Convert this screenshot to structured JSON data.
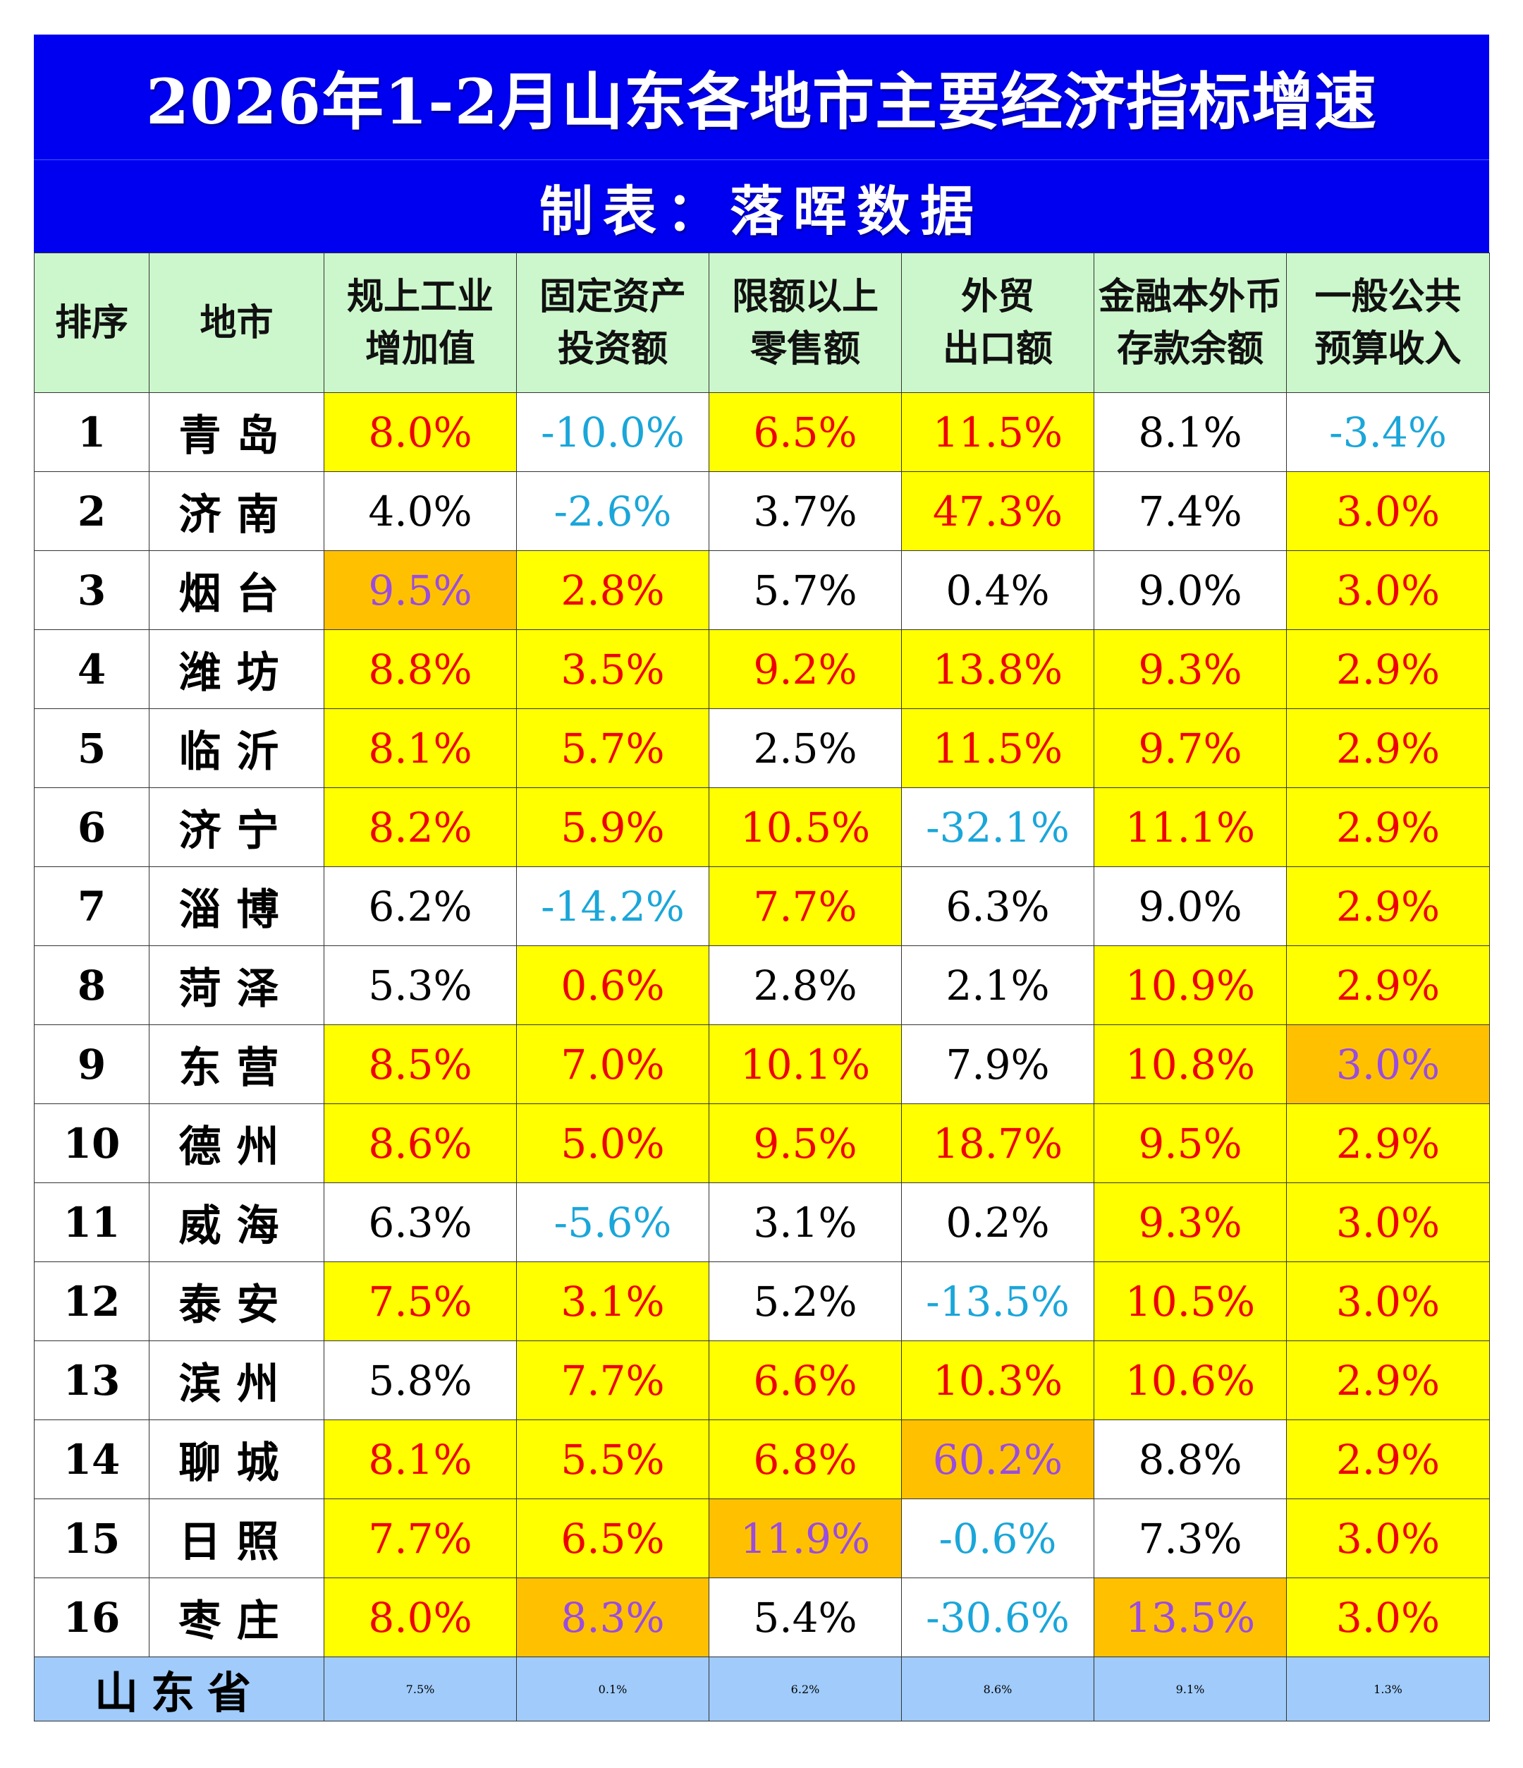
{
  "title": "2026年1-2月山东各地市主要经济指标增速",
  "subtitle": "制表：落晖数据",
  "colors": {
    "title_bg": "#0000f0",
    "header_bg": "#ccf7cc",
    "highlight_yellow": "#ffff00",
    "highlight_orange": "#ffc000",
    "total_row_bg": "#a0cbfa",
    "text_red": "#ee0000",
    "text_blue_negative": "#1aa6d9",
    "text_purple_top": "#9a4be0"
  },
  "headers": {
    "rank": "排序",
    "city": "地市",
    "col1": [
      "规上工业",
      "增加值"
    ],
    "col2": [
      "固定资产",
      "投资额"
    ],
    "col3": [
      "限额以上",
      "零售额"
    ],
    "col4": [
      "外贸",
      "出口额"
    ],
    "col5": [
      "金融本外币",
      "存款余额"
    ],
    "col6": [
      "一般公共",
      "预算收入"
    ]
  },
  "rows": [
    {
      "rank": "1",
      "city": "青岛",
      "v": [
        "8.0%",
        "-10.0%",
        "6.5%",
        "11.5%",
        "8.1%",
        "-3.4%"
      ],
      "bg": [
        "yellow",
        "white",
        "yellow",
        "yellow",
        "white",
        "white"
      ],
      "fg": [
        "red",
        "blue",
        "red",
        "red",
        "black",
        "blue"
      ]
    },
    {
      "rank": "2",
      "city": "济南",
      "v": [
        "4.0%",
        "-2.6%",
        "3.7%",
        "47.3%",
        "7.4%",
        "3.0%"
      ],
      "bg": [
        "white",
        "white",
        "white",
        "yellow",
        "white",
        "yellow"
      ],
      "fg": [
        "black",
        "blue",
        "black",
        "red",
        "black",
        "red"
      ]
    },
    {
      "rank": "3",
      "city": "烟台",
      "v": [
        "9.5%",
        "2.8%",
        "5.7%",
        "0.4%",
        "9.0%",
        "3.0%"
      ],
      "bg": [
        "orange",
        "yellow",
        "white",
        "white",
        "white",
        "yellow"
      ],
      "fg": [
        "purple",
        "red",
        "black",
        "black",
        "black",
        "red"
      ]
    },
    {
      "rank": "4",
      "city": "潍坊",
      "v": [
        "8.8%",
        "3.5%",
        "9.2%",
        "13.8%",
        "9.3%",
        "2.9%"
      ],
      "bg": [
        "yellow",
        "yellow",
        "yellow",
        "yellow",
        "yellow",
        "yellow"
      ],
      "fg": [
        "red",
        "red",
        "red",
        "red",
        "red",
        "red"
      ]
    },
    {
      "rank": "5",
      "city": "临沂",
      "v": [
        "8.1%",
        "5.7%",
        "2.5%",
        "11.5%",
        "9.7%",
        "2.9%"
      ],
      "bg": [
        "yellow",
        "yellow",
        "white",
        "yellow",
        "yellow",
        "yellow"
      ],
      "fg": [
        "red",
        "red",
        "black",
        "red",
        "red",
        "red"
      ]
    },
    {
      "rank": "6",
      "city": "济宁",
      "v": [
        "8.2%",
        "5.9%",
        "10.5%",
        "-32.1%",
        "11.1%",
        "2.9%"
      ],
      "bg": [
        "yellow",
        "yellow",
        "yellow",
        "white",
        "yellow",
        "yellow"
      ],
      "fg": [
        "red",
        "red",
        "red",
        "blue",
        "red",
        "red"
      ]
    },
    {
      "rank": "7",
      "city": "淄博",
      "v": [
        "6.2%",
        "-14.2%",
        "7.7%",
        "6.3%",
        "9.0%",
        "2.9%"
      ],
      "bg": [
        "white",
        "white",
        "yellow",
        "white",
        "white",
        "yellow"
      ],
      "fg": [
        "black",
        "blue",
        "red",
        "black",
        "black",
        "red"
      ]
    },
    {
      "rank": "8",
      "city": "菏泽",
      "v": [
        "5.3%",
        "0.6%",
        "2.8%",
        "2.1%",
        "10.9%",
        "2.9%"
      ],
      "bg": [
        "white",
        "yellow",
        "white",
        "white",
        "yellow",
        "yellow"
      ],
      "fg": [
        "black",
        "red",
        "black",
        "black",
        "red",
        "red"
      ]
    },
    {
      "rank": "9",
      "city": "东营",
      "v": [
        "8.5%",
        "7.0%",
        "10.1%",
        "7.9%",
        "10.8%",
        "3.0%"
      ],
      "bg": [
        "yellow",
        "yellow",
        "yellow",
        "white",
        "yellow",
        "orange"
      ],
      "fg": [
        "red",
        "red",
        "red",
        "black",
        "red",
        "purple"
      ]
    },
    {
      "rank": "10",
      "city": "德州",
      "v": [
        "8.6%",
        "5.0%",
        "9.5%",
        "18.7%",
        "9.5%",
        "2.9%"
      ],
      "bg": [
        "yellow",
        "yellow",
        "yellow",
        "yellow",
        "yellow",
        "yellow"
      ],
      "fg": [
        "red",
        "red",
        "red",
        "red",
        "red",
        "red"
      ]
    },
    {
      "rank": "11",
      "city": "威海",
      "v": [
        "6.3%",
        "-5.6%",
        "3.1%",
        "0.2%",
        "9.3%",
        "3.0%"
      ],
      "bg": [
        "white",
        "white",
        "white",
        "white",
        "yellow",
        "yellow"
      ],
      "fg": [
        "black",
        "blue",
        "black",
        "black",
        "red",
        "red"
      ]
    },
    {
      "rank": "12",
      "city": "泰安",
      "v": [
        "7.5%",
        "3.1%",
        "5.2%",
        "-13.5%",
        "10.5%",
        "3.0%"
      ],
      "bg": [
        "yellow",
        "yellow",
        "white",
        "white",
        "yellow",
        "yellow"
      ],
      "fg": [
        "red",
        "red",
        "black",
        "blue",
        "red",
        "red"
      ]
    },
    {
      "rank": "13",
      "city": "滨州",
      "v": [
        "5.8%",
        "7.7%",
        "6.6%",
        "10.3%",
        "10.6%",
        "2.9%"
      ],
      "bg": [
        "white",
        "yellow",
        "yellow",
        "yellow",
        "yellow",
        "yellow"
      ],
      "fg": [
        "black",
        "red",
        "red",
        "red",
        "red",
        "red"
      ]
    },
    {
      "rank": "14",
      "city": "聊城",
      "v": [
        "8.1%",
        "5.5%",
        "6.8%",
        "60.2%",
        "8.8%",
        "2.9%"
      ],
      "bg": [
        "yellow",
        "yellow",
        "yellow",
        "orange",
        "white",
        "yellow"
      ],
      "fg": [
        "red",
        "red",
        "red",
        "purple",
        "black",
        "red"
      ]
    },
    {
      "rank": "15",
      "city": "日照",
      "v": [
        "7.7%",
        "6.5%",
        "11.9%",
        "-0.6%",
        "7.3%",
        "3.0%"
      ],
      "bg": [
        "yellow",
        "yellow",
        "orange",
        "white",
        "white",
        "yellow"
      ],
      "fg": [
        "red",
        "red",
        "purple",
        "blue",
        "black",
        "red"
      ]
    },
    {
      "rank": "16",
      "city": "枣庄",
      "v": [
        "8.0%",
        "8.3%",
        "5.4%",
        "-30.6%",
        "13.5%",
        "3.0%"
      ],
      "bg": [
        "yellow",
        "orange",
        "white",
        "white",
        "orange",
        "yellow"
      ],
      "fg": [
        "red",
        "purple",
        "black",
        "blue",
        "purple",
        "red"
      ]
    }
  ],
  "total": {
    "label": "山东省",
    "v": [
      "7.5%",
      "0.1%",
      "6.2%",
      "8.6%",
      "9.1%",
      "1.3%"
    ]
  },
  "chart_data": {
    "type": "table",
    "title": "2026年1-2月山东各地市主要经济指标增速",
    "subtitle": "制表：落晖数据",
    "columns": [
      "排序",
      "地市",
      "规上工业增加值",
      "固定资产投资额",
      "限额以上零售额",
      "外贸出口额",
      "金融本外币存款余额",
      "一般公共预算收入"
    ],
    "categories": [
      "青岛",
      "济南",
      "烟台",
      "潍坊",
      "临沂",
      "济宁",
      "淄博",
      "菏泽",
      "东营",
      "德州",
      "威海",
      "泰安",
      "滨州",
      "聊城",
      "日照",
      "枣庄"
    ],
    "series": [
      {
        "name": "规上工业增加值",
        "values": [
          8.0,
          4.0,
          9.5,
          8.8,
          8.1,
          8.2,
          6.2,
          5.3,
          8.5,
          8.6,
          6.3,
          7.5,
          5.8,
          8.1,
          7.7,
          8.0
        ]
      },
      {
        "name": "固定资产投资额",
        "values": [
          -10.0,
          -2.6,
          2.8,
          3.5,
          5.7,
          5.9,
          -14.2,
          0.6,
          7.0,
          5.0,
          -5.6,
          3.1,
          7.7,
          5.5,
          6.5,
          8.3
        ]
      },
      {
        "name": "限额以上零售额",
        "values": [
          6.5,
          3.7,
          5.7,
          9.2,
          2.5,
          10.5,
          7.7,
          2.8,
          10.1,
          9.5,
          3.1,
          5.2,
          6.6,
          6.8,
          11.9,
          5.4
        ]
      },
      {
        "name": "外贸出口额",
        "values": [
          11.5,
          47.3,
          0.4,
          13.8,
          11.5,
          -32.1,
          6.3,
          2.1,
          7.9,
          18.7,
          0.2,
          -13.5,
          10.3,
          60.2,
          -0.6,
          -30.6
        ]
      },
      {
        "name": "金融本外币存款余额",
        "values": [
          8.1,
          7.4,
          9.0,
          9.3,
          9.7,
          11.1,
          9.0,
          10.9,
          10.8,
          9.5,
          9.3,
          10.5,
          10.6,
          8.8,
          7.3,
          13.5
        ]
      },
      {
        "name": "一般公共预算收入",
        "values": [
          -3.4,
          3.0,
          3.0,
          2.9,
          2.9,
          2.9,
          2.9,
          2.9,
          3.0,
          2.9,
          3.0,
          3.0,
          2.9,
          2.9,
          3.0,
          3.0
        ]
      }
    ],
    "total_row": {
      "name": "山东省",
      "values": [
        7.5,
        0.1,
        6.2,
        8.6,
        9.1,
        1.3
      ]
    },
    "unit": "%"
  }
}
